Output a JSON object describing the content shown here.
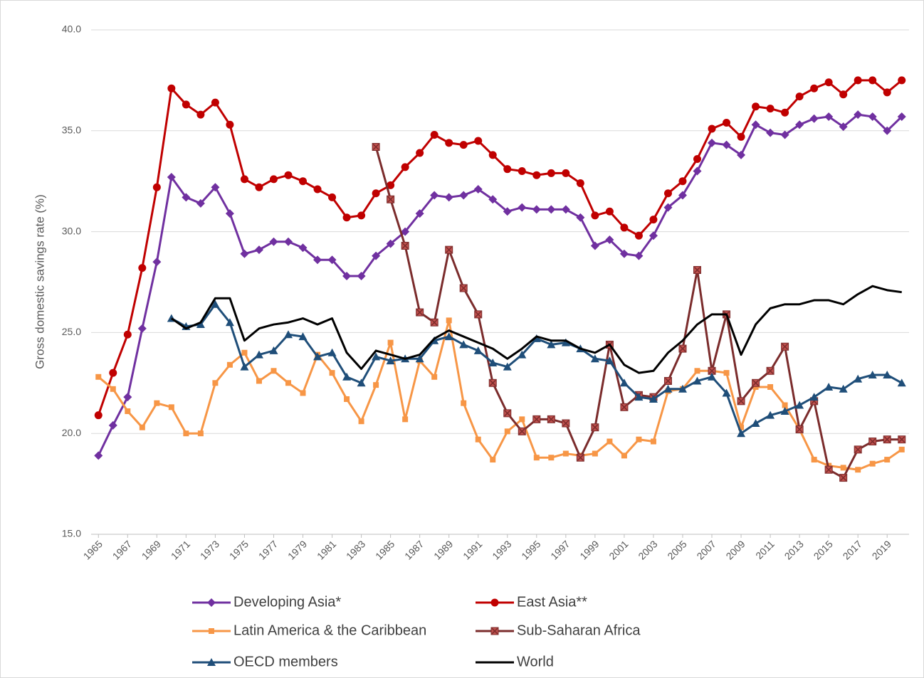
{
  "chart_data": {
    "type": "line",
    "y_label": "Gross domestic savings  rate (%)",
    "x": [
      1965,
      1966,
      1967,
      1968,
      1969,
      1970,
      1971,
      1972,
      1973,
      1974,
      1975,
      1976,
      1977,
      1978,
      1979,
      1980,
      1981,
      1982,
      1983,
      1984,
      1985,
      1986,
      1987,
      1988,
      1989,
      1990,
      1991,
      1992,
      1993,
      1994,
      1995,
      1996,
      1997,
      1998,
      1999,
      2000,
      2001,
      2002,
      2003,
      2004,
      2005,
      2006,
      2007,
      2008,
      2009,
      2010,
      2011,
      2012,
      2013,
      2014,
      2015,
      2016,
      2017,
      2018,
      2019,
      2020
    ],
    "xlim": [
      1964.5,
      2020.5
    ],
    "xticks": [
      1965,
      1967,
      1969,
      1971,
      1973,
      1975,
      1977,
      1979,
      1981,
      1983,
      1985,
      1987,
      1989,
      1991,
      1993,
      1995,
      1997,
      1999,
      2001,
      2003,
      2005,
      2007,
      2009,
      2011,
      2013,
      2015,
      2017,
      2019
    ],
    "ylim": [
      15,
      40
    ],
    "yticks": [
      {
        "value": 15,
        "label": "15.0"
      },
      {
        "value": 20,
        "label": "20.0"
      },
      {
        "value": 25,
        "label": "25.0"
      },
      {
        "value": 30,
        "label": "30.0"
      },
      {
        "value": 35,
        "label": "35.0"
      },
      {
        "value": 40,
        "label": "40.0"
      }
    ],
    "grid": true,
    "legend": "bottom",
    "series": [
      {
        "name": "Developing Asia*",
        "color": "#7030a0",
        "marker": "diamond",
        "values": [
          18.9,
          20.4,
          21.8,
          25.2,
          28.5,
          32.7,
          31.7,
          31.4,
          32.2,
          30.9,
          28.9,
          29.1,
          29.5,
          29.5,
          29.2,
          28.6,
          28.6,
          27.8,
          27.8,
          28.8,
          29.4,
          30.0,
          30.9,
          31.8,
          31.7,
          31.8,
          32.1,
          31.6,
          31.0,
          31.2,
          31.1,
          31.1,
          31.1,
          30.7,
          29.3,
          29.6,
          28.9,
          28.8,
          29.8,
          31.2,
          31.8,
          33.0,
          34.4,
          34.3,
          33.8,
          35.3,
          34.9,
          34.8,
          35.3,
          35.6,
          35.7,
          35.2,
          35.8,
          35.7,
          35.0,
          35.7
        ]
      },
      {
        "name": "East Asia**",
        "color": "#c00000",
        "marker": "circle",
        "values": [
          20.9,
          23.0,
          24.9,
          28.2,
          32.2,
          37.1,
          36.3,
          35.8,
          36.4,
          35.3,
          32.6,
          32.2,
          32.6,
          32.8,
          32.5,
          32.1,
          31.7,
          30.7,
          30.8,
          31.9,
          32.3,
          33.2,
          33.9,
          34.8,
          34.4,
          34.3,
          34.5,
          33.8,
          33.1,
          33.0,
          32.8,
          32.9,
          32.9,
          32.4,
          30.8,
          31.0,
          30.2,
          29.8,
          30.6,
          31.9,
          32.5,
          33.6,
          35.1,
          35.4,
          34.7,
          36.2,
          36.1,
          35.9,
          36.7,
          37.1,
          37.4,
          36.8,
          37.5,
          37.5,
          36.9,
          37.5
        ]
      },
      {
        "name": "Latin America & the Caribbean",
        "color": "#f79646",
        "marker": "square",
        "values": [
          22.8,
          22.2,
          21.1,
          20.3,
          21.5,
          21.3,
          20.0,
          20.0,
          22.5,
          23.4,
          24.0,
          22.6,
          23.1,
          22.5,
          22.0,
          23.9,
          23.0,
          21.7,
          20.6,
          22.4,
          24.5,
          20.7,
          23.6,
          22.8,
          25.6,
          21.5,
          19.7,
          18.7,
          20.1,
          20.7,
          18.8,
          18.8,
          19.0,
          18.9,
          19.0,
          19.6,
          18.9,
          19.7,
          19.6,
          22.1,
          22.2,
          23.1,
          23.1,
          23.0,
          20.3,
          22.3,
          22.3,
          21.4,
          20.2,
          18.7,
          18.4,
          18.3,
          18.2,
          18.5,
          18.7,
          19.2
        ]
      },
      {
        "name": "Sub-Saharan Africa",
        "color": "#7b2c2c",
        "marker": "square-x",
        "values": [
          null,
          null,
          null,
          null,
          null,
          null,
          null,
          null,
          null,
          null,
          null,
          null,
          null,
          null,
          null,
          null,
          null,
          null,
          null,
          34.2,
          31.6,
          29.3,
          26.0,
          25.5,
          29.1,
          27.2,
          25.9,
          22.5,
          21.0,
          20.1,
          20.7,
          20.7,
          20.5,
          18.8,
          20.3,
          24.4,
          21.3,
          21.9,
          21.8,
          22.6,
          24.2,
          28.1,
          23.1,
          25.9,
          21.6,
          22.5,
          23.1,
          24.3,
          20.2,
          21.6,
          18.2,
          17.8,
          19.2,
          19.6,
          19.7,
          19.7
        ]
      },
      {
        "name": "OECD members",
        "color": "#1f4e79",
        "marker": "triangle",
        "values": [
          null,
          null,
          null,
          null,
          null,
          25.7,
          25.3,
          25.4,
          26.4,
          25.5,
          23.3,
          23.9,
          24.1,
          24.9,
          24.8,
          23.8,
          24.0,
          22.8,
          22.5,
          23.8,
          23.6,
          23.7,
          23.7,
          24.6,
          24.8,
          24.4,
          24.1,
          23.5,
          23.3,
          23.9,
          24.7,
          24.4,
          24.5,
          24.2,
          23.7,
          23.6,
          22.5,
          21.8,
          21.7,
          22.2,
          22.2,
          22.6,
          22.8,
          22.0,
          20.0,
          20.5,
          20.9,
          21.1,
          21.4,
          21.8,
          22.3,
          22.2,
          22.7,
          22.9,
          22.9,
          22.5
        ]
      },
      {
        "name": "World",
        "color": "#000000",
        "marker": "none",
        "values": [
          null,
          null,
          null,
          null,
          null,
          25.7,
          25.2,
          25.5,
          26.7,
          26.7,
          24.6,
          25.2,
          25.4,
          25.5,
          25.7,
          25.4,
          25.7,
          24.0,
          23.2,
          24.1,
          23.9,
          23.7,
          23.9,
          24.7,
          25.1,
          24.8,
          24.5,
          24.2,
          23.7,
          24.2,
          24.8,
          24.6,
          24.6,
          24.2,
          24.0,
          24.4,
          23.4,
          23.0,
          23.1,
          24.0,
          24.6,
          25.4,
          25.9,
          25.9,
          23.9,
          25.4,
          26.2,
          26.4,
          26.4,
          26.6,
          26.6,
          26.4,
          26.9,
          27.3,
          27.1,
          27.0
        ]
      }
    ]
  }
}
